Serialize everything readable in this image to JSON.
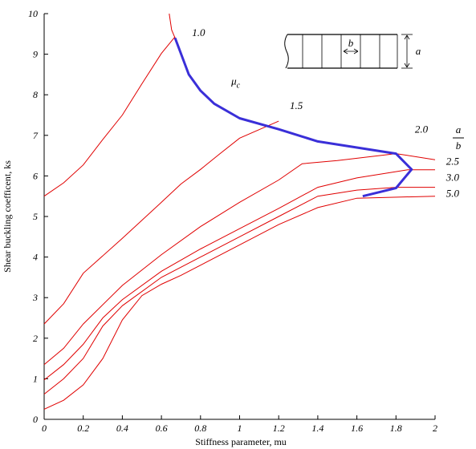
{
  "chart_data": {
    "type": "line",
    "title": "",
    "xlabel": "Stiffness parameter, mu",
    "ylabel": "Shear buckling coefficent, ks",
    "xlim": [
      0,
      2
    ],
    "ylim": [
      0,
      10
    ],
    "x_ticks": [
      "0",
      "0.2",
      "0.4",
      "0.6",
      "0.8",
      "1",
      "1.2",
      "1.4",
      "1.6",
      "1.8",
      "2"
    ],
    "y_ticks": [
      "0",
      "1",
      "2",
      "3",
      "4",
      "5",
      "6",
      "7",
      "8",
      "9",
      "10"
    ],
    "grid": false,
    "legend_title": {
      "numerator": "a",
      "denominator": "b"
    },
    "series": [
      {
        "name": "1.0",
        "color": "#e00000",
        "points": [
          [
            0,
            5.5
          ],
          [
            0.1,
            5.83
          ],
          [
            0.2,
            6.27
          ],
          [
            0.3,
            6.9
          ],
          [
            0.4,
            7.5
          ],
          [
            0.5,
            8.27
          ],
          [
            0.6,
            9.02
          ],
          [
            0.67,
            9.43
          ]
        ]
      },
      {
        "name": "1.0-branch",
        "color": "#e00000",
        "points": [
          [
            0.64,
            10.0
          ],
          [
            0.652,
            9.6
          ],
          [
            0.67,
            9.4
          ]
        ]
      },
      {
        "name": "1.5",
        "color": "#e00000",
        "points": [
          [
            0,
            2.35
          ],
          [
            0.1,
            2.85
          ],
          [
            0.2,
            3.6
          ],
          [
            0.4,
            4.46
          ],
          [
            0.6,
            5.35
          ],
          [
            0.7,
            5.8
          ],
          [
            0.8,
            6.16
          ],
          [
            0.9,
            6.55
          ],
          [
            1.0,
            6.93
          ],
          [
            1.2,
            7.35
          ]
        ]
      },
      {
        "name": "2.0",
        "color": "#e00000",
        "points": [
          [
            0,
            1.35
          ],
          [
            0.1,
            1.75
          ],
          [
            0.2,
            2.35
          ],
          [
            0.4,
            3.3
          ],
          [
            0.6,
            4.06
          ],
          [
            0.8,
            4.75
          ],
          [
            1.0,
            5.35
          ],
          [
            1.2,
            5.9
          ],
          [
            1.32,
            6.3
          ],
          [
            1.5,
            6.38
          ],
          [
            1.8,
            6.55
          ],
          [
            2.0,
            6.4
          ]
        ]
      },
      {
        "name": "2.5",
        "color": "#e00000",
        "points": [
          [
            0,
            0.97
          ],
          [
            0.1,
            1.35
          ],
          [
            0.2,
            1.85
          ],
          [
            0.3,
            2.5
          ],
          [
            0.4,
            2.95
          ],
          [
            0.6,
            3.65
          ],
          [
            0.8,
            4.2
          ],
          [
            1.0,
            4.7
          ],
          [
            1.2,
            5.2
          ],
          [
            1.4,
            5.72
          ],
          [
            1.6,
            5.95
          ],
          [
            1.86,
            6.15
          ],
          [
            2.0,
            6.15
          ]
        ]
      },
      {
        "name": "3.0",
        "color": "#e00000",
        "points": [
          [
            0,
            0.62
          ],
          [
            0.1,
            1.0
          ],
          [
            0.2,
            1.5
          ],
          [
            0.3,
            2.3
          ],
          [
            0.4,
            2.8
          ],
          [
            0.6,
            3.5
          ],
          [
            0.8,
            4.0
          ],
          [
            1.0,
            4.5
          ],
          [
            1.2,
            5.0
          ],
          [
            1.4,
            5.5
          ],
          [
            1.6,
            5.65
          ],
          [
            1.8,
            5.72
          ],
          [
            2.0,
            5.72
          ]
        ]
      },
      {
        "name": "5.0",
        "color": "#e00000",
        "points": [
          [
            0,
            0.25
          ],
          [
            0.1,
            0.47
          ],
          [
            0.2,
            0.85
          ],
          [
            0.3,
            1.5
          ],
          [
            0.4,
            2.45
          ],
          [
            0.5,
            3.05
          ],
          [
            0.6,
            3.33
          ],
          [
            0.7,
            3.55
          ],
          [
            1.0,
            4.3
          ],
          [
            1.2,
            4.8
          ],
          [
            1.4,
            5.22
          ],
          [
            1.6,
            5.45
          ],
          [
            2.0,
            5.5
          ]
        ]
      },
      {
        "name": "μc",
        "color": "#3a2fd8",
        "points": [
          [
            0.67,
            9.4
          ],
          [
            0.74,
            8.5
          ],
          [
            0.8,
            8.1
          ],
          [
            0.87,
            7.78
          ],
          [
            1.0,
            7.42
          ],
          [
            1.2,
            7.15
          ],
          [
            1.4,
            6.85
          ],
          [
            1.6,
            6.7
          ],
          [
            1.8,
            6.55
          ],
          [
            1.88,
            6.16
          ],
          [
            1.8,
            5.7
          ],
          [
            1.63,
            5.5
          ]
        ]
      }
    ],
    "annotations": [
      {
        "text": "1.0",
        "x": 0.79,
        "y": 9.45
      },
      {
        "text": "μ",
        "sub": "c",
        "x": 0.98,
        "y": 8.25
      },
      {
        "text": "1.5",
        "x": 1.29,
        "y": 7.65
      },
      {
        "text": "2.0",
        "x": 1.93,
        "y": 7.07
      },
      {
        "text": "2.5",
        "x": 2.09,
        "y": 6.27
      },
      {
        "text": "3.0",
        "x": 2.09,
        "y": 5.88
      },
      {
        "text": "5.0",
        "x": 2.09,
        "y": 5.48
      }
    ],
    "inset": {
      "label_b": "b",
      "label_a": "a"
    }
  }
}
